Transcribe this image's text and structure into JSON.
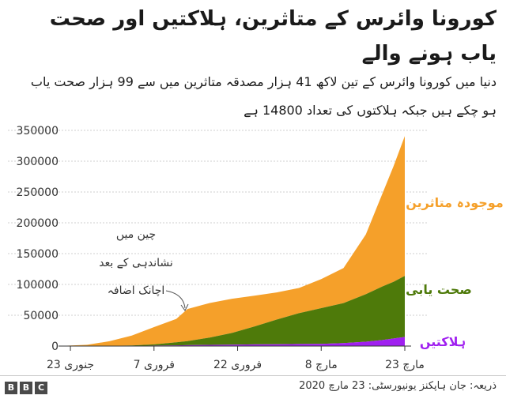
{
  "header": {
    "title": "کورونا وائرس کے متاثرین، ہلاکتیں اور صحت یاب ہونے والے",
    "subtitle": "دنیا میں کورونا وائرس کے تین لاکھ 41 ہزار مصدقہ متاثرین میں سے 99 ہزار صحت یاب ہو چکے ہیں جبکہ ہلاکتوں کی تعداد 14800 ہے"
  },
  "footer": {
    "source": "ذریعہ: جان ہاپکنز یونیورسٹی: 23 مارچ 2020",
    "brand_letters": [
      "B",
      "B",
      "C"
    ]
  },
  "chart_data": {
    "type": "area",
    "stacked": true,
    "x": [
      "2020-01-22",
      "2020-01-26",
      "2020-01-30",
      "2020-02-03",
      "2020-02-07",
      "2020-02-11",
      "2020-02-13",
      "2020-02-17",
      "2020-02-21",
      "2020-02-25",
      "2020-02-29",
      "2020-03-04",
      "2020-03-08",
      "2020-03-12",
      "2020-03-16",
      "2020-03-19",
      "2020-03-21",
      "2020-03-23"
    ],
    "x_ticks": [
      {
        "date": "2020-01-23",
        "label": "23 جنوری"
      },
      {
        "date": "2020-02-07",
        "label": "7 فروری"
      },
      {
        "date": "2020-02-22",
        "label": "22 فروری"
      },
      {
        "date": "2020-03-08",
        "label": "8 مارچ"
      },
      {
        "date": "2020-03-23",
        "label": "23 مارچ"
      }
    ],
    "y_ticks": [
      0,
      50000,
      100000,
      150000,
      200000,
      250000,
      300000,
      350000
    ],
    "ylim": [
      0,
      350000
    ],
    "series": [
      {
        "name": "ہلاکتیں",
        "color": "#a020f0",
        "values": [
          17,
          56,
          170,
          427,
          720,
          1100,
          1370,
          1870,
          2250,
          2700,
          2990,
          3290,
          3600,
          4720,
          7100,
          9800,
          12300,
          14800
        ]
      },
      {
        "name": "صحت یابی",
        "color": "#4e7a0a",
        "values": [
          28,
          52,
          130,
          600,
          2000,
          5000,
          6700,
          12000,
          19000,
          29000,
          40000,
          50000,
          58000,
          65000,
          77000,
          87000,
          92000,
          99000
        ]
      },
      {
        "name": "موجودہ متاثرین",
        "color": "#f5a02a",
        "values": [
          510,
          2000,
          7500,
          16000,
          28000,
          38000,
          52000,
          56000,
          55500,
          50000,
          44000,
          41000,
          47000,
          57000,
          97000,
          151000,
          188000,
          227000
        ]
      }
    ],
    "annotation": {
      "text_lines": [
        "چین میں",
        "نشاندہی کے بعد",
        "اچانک اضافہ"
      ],
      "target_date": "2020-02-13"
    }
  }
}
